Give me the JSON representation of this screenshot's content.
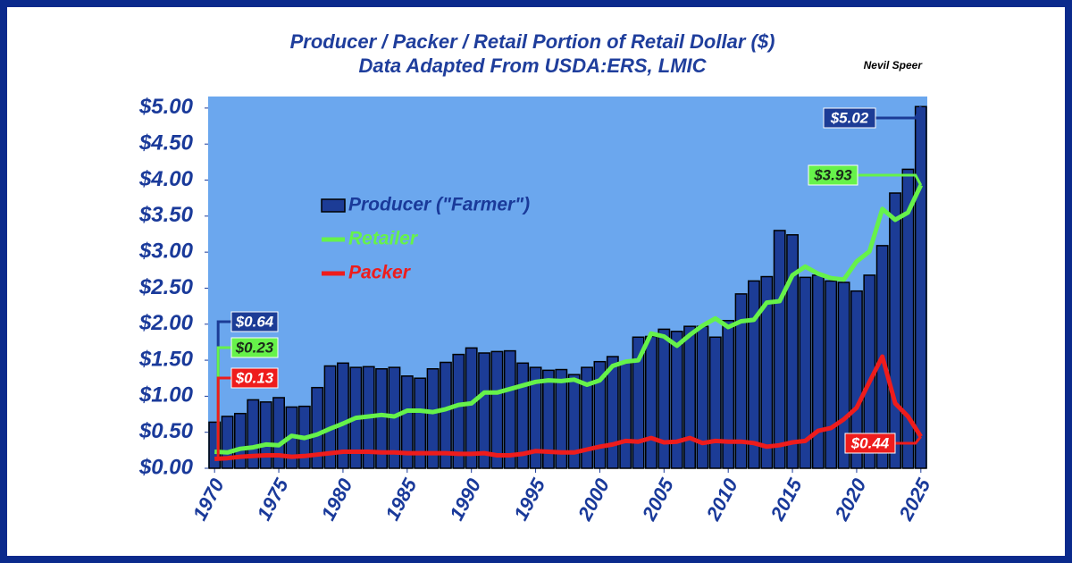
{
  "chart_data": {
    "type": "combo",
    "title": "Producer / Packer / Retail Portion of Retail Dollar ($)",
    "subtitle": "Data Adapted From USDA:ERS, LMIC",
    "annotation": "Nevil Speer",
    "legend": "upper left",
    "grid": false,
    "x": [
      1970,
      1971,
      1972,
      1973,
      1974,
      1975,
      1976,
      1977,
      1978,
      1979,
      1980,
      1981,
      1982,
      1983,
      1984,
      1985,
      1986,
      1987,
      1988,
      1989,
      1990,
      1991,
      1992,
      1993,
      1994,
      1995,
      1996,
      1997,
      1998,
      1999,
      2000,
      2001,
      2002,
      2003,
      2004,
      2005,
      2006,
      2007,
      2008,
      2009,
      2010,
      2011,
      2012,
      2013,
      2014,
      2015,
      2016,
      2017,
      2018,
      2019,
      2020,
      2021,
      2022,
      2023,
      2024,
      2025
    ],
    "xlim": [
      1969.5,
      2025.5
    ],
    "xticks": [
      1970,
      1975,
      1980,
      1985,
      1990,
      1995,
      2000,
      2005,
      2010,
      2015,
      2020,
      2025
    ],
    "ylim": [
      0,
      5.16
    ],
    "yticks": [
      {
        "value": 0,
        "label": "$0.00"
      },
      {
        "value": 0.5,
        "label": "$0.50"
      },
      {
        "value": 1,
        "label": "$1.00"
      },
      {
        "value": 1.5,
        "label": "$1.50"
      },
      {
        "value": 2,
        "label": "$2.00"
      },
      {
        "value": 2.5,
        "label": "$2.50"
      },
      {
        "value": 3,
        "label": "$3.00"
      },
      {
        "value": 3.5,
        "label": "$3.50"
      },
      {
        "value": 4,
        "label": "$4.00"
      },
      {
        "value": 4.5,
        "label": "$4.50"
      },
      {
        "value": 5,
        "label": "$5.00"
      }
    ],
    "series": [
      {
        "name": "Producer (\"Farmer\")",
        "type": "bar",
        "color": "#1c3c96",
        "text_color": "#1a3a9a",
        "values": [
          0.64,
          0.72,
          0.76,
          0.95,
          0.92,
          0.98,
          0.85,
          0.86,
          1.12,
          1.42,
          1.46,
          1.4,
          1.41,
          1.38,
          1.4,
          1.28,
          1.25,
          1.38,
          1.47,
          1.58,
          1.67,
          1.6,
          1.62,
          1.63,
          1.46,
          1.4,
          1.36,
          1.37,
          1.3,
          1.4,
          1.48,
          1.55,
          1.47,
          1.82,
          1.83,
          1.93,
          1.9,
          1.97,
          1.97,
          1.82,
          2.05,
          2.42,
          2.6,
          2.66,
          3.3,
          3.24,
          2.65,
          2.68,
          2.6,
          2.58,
          2.46,
          2.68,
          3.09,
          3.82,
          4.15,
          5.02
        ],
        "value_labels": [
          "$0.64",
          null,
          null,
          null,
          null,
          null,
          null,
          null,
          null,
          null,
          null,
          null,
          null,
          null,
          null,
          null,
          null,
          null,
          null,
          null,
          null,
          null,
          null,
          null,
          null,
          null,
          null,
          null,
          null,
          null,
          null,
          null,
          null,
          null,
          null,
          null,
          null,
          null,
          null,
          null,
          null,
          null,
          null,
          null,
          null,
          null,
          null,
          null,
          null,
          null,
          null,
          null,
          null,
          null,
          null,
          "$5.02"
        ]
      },
      {
        "name": "Retailer",
        "type": "line",
        "color": "#66f24a",
        "text_color": "#66f24a",
        "values": [
          0.23,
          0.22,
          0.27,
          0.29,
          0.33,
          0.32,
          0.45,
          0.42,
          0.47,
          0.55,
          0.62,
          0.7,
          0.72,
          0.74,
          0.72,
          0.8,
          0.8,
          0.78,
          0.82,
          0.88,
          0.9,
          1.05,
          1.05,
          1.1,
          1.15,
          1.2,
          1.22,
          1.21,
          1.23,
          1.16,
          1.22,
          1.42,
          1.48,
          1.5,
          1.87,
          1.83,
          1.7,
          1.85,
          1.98,
          2.08,
          1.96,
          2.04,
          2.06,
          2.3,
          2.32,
          2.68,
          2.8,
          2.7,
          2.64,
          2.62,
          2.87,
          3.01,
          3.6,
          3.45,
          3.55,
          3.93
        ],
        "value_labels": [
          "$0.23",
          null,
          null,
          null,
          null,
          null,
          null,
          null,
          null,
          null,
          null,
          null,
          null,
          null,
          null,
          null,
          null,
          null,
          null,
          null,
          null,
          null,
          null,
          null,
          null,
          null,
          null,
          null,
          null,
          null,
          null,
          null,
          null,
          null,
          null,
          null,
          null,
          null,
          null,
          null,
          null,
          null,
          null,
          null,
          null,
          null,
          null,
          null,
          null,
          null,
          null,
          null,
          null,
          null,
          null,
          "$3.93"
        ]
      },
      {
        "name": "Packer",
        "type": "line",
        "color": "#ee1c1c",
        "text_color": "#ee1c1c",
        "values": [
          0.13,
          0.14,
          0.16,
          0.17,
          0.18,
          0.18,
          0.16,
          0.17,
          0.19,
          0.21,
          0.23,
          0.23,
          0.23,
          0.22,
          0.22,
          0.21,
          0.21,
          0.21,
          0.21,
          0.2,
          0.2,
          0.21,
          0.18,
          0.18,
          0.2,
          0.24,
          0.23,
          0.22,
          0.22,
          0.26,
          0.3,
          0.33,
          0.38,
          0.37,
          0.42,
          0.36,
          0.37,
          0.42,
          0.35,
          0.38,
          0.37,
          0.37,
          0.35,
          0.3,
          0.32,
          0.36,
          0.38,
          0.52,
          0.56,
          0.68,
          0.84,
          1.2,
          1.55,
          0.9,
          0.72,
          0.44
        ],
        "value_labels": [
          "$0.13",
          null,
          null,
          null,
          null,
          null,
          null,
          null,
          null,
          null,
          null,
          null,
          null,
          null,
          null,
          null,
          null,
          null,
          null,
          null,
          null,
          null,
          null,
          null,
          null,
          null,
          null,
          null,
          null,
          null,
          null,
          null,
          null,
          null,
          null,
          null,
          null,
          null,
          null,
          null,
          null,
          null,
          null,
          null,
          null,
          null,
          null,
          null,
          null,
          null,
          null,
          null,
          null,
          null,
          null,
          "$0.44"
        ]
      }
    ]
  }
}
